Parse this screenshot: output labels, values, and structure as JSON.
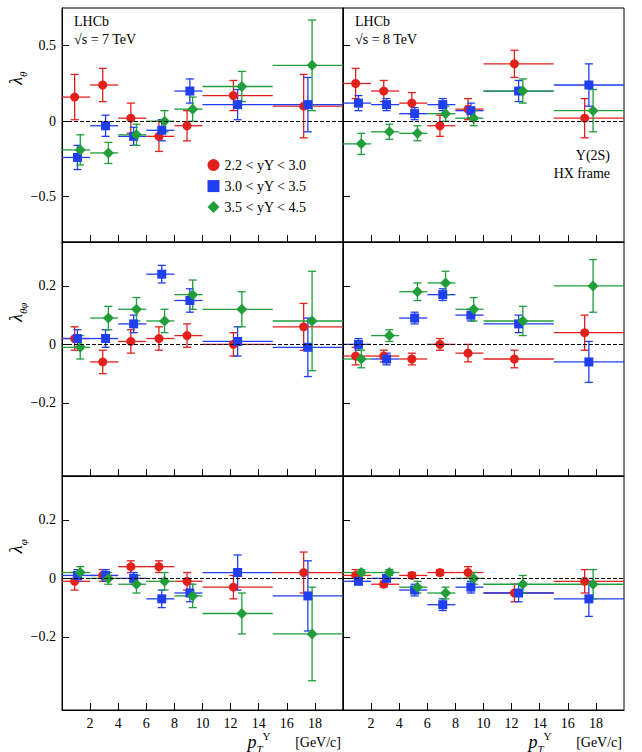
{
  "chart_data": [
    {
      "type": "scatter",
      "annotations": [
        "LHCb",
        "√s = 7 TeV"
      ],
      "ylabel": {
        "base": "λ",
        "sub": "θ"
      },
      "legend": "lower right",
      "xlim": [
        0,
        20
      ],
      "xticks": [
        2,
        4,
        6,
        8,
        10,
        12,
        14,
        16,
        18
      ],
      "ylim": [
        -0.8,
        0.75
      ],
      "yticks": [
        {
          "value": -0.5,
          "label": "−0.5"
        },
        0,
        0.5
      ],
      "tick_labels": "y",
      "hline": 0,
      "bin_edges": [
        0,
        2,
        4,
        6,
        8,
        10,
        15,
        20
      ],
      "series": [
        {
          "name": "2.2 < yΥ < 3.0",
          "color": "#e3211c",
          "marker": "circle",
          "x": [
            0.9,
            2.9,
            4.9,
            6.9,
            8.9,
            12.2,
            17.2
          ],
          "values": [
            0.16,
            0.24,
            0.02,
            -0.1,
            -0.03,
            0.17,
            0.1
          ],
          "errors": [
            0.15,
            0.11,
            0.1,
            0.1,
            0.1,
            0.1,
            0.21
          ]
        },
        {
          "name": "3.0 < yΥ < 3.5",
          "color": "#1f3ff0",
          "marker": "square",
          "x": [
            1.1,
            3.1,
            5.1,
            7.1,
            9.1,
            12.5,
            17.5
          ],
          "values": [
            -0.24,
            -0.03,
            -0.1,
            -0.06,
            0.2,
            0.11,
            0.11
          ],
          "errors": [
            0.08,
            0.07,
            0.06,
            0.07,
            0.08,
            0.1,
            0.18
          ]
        },
        {
          "name": "3.5 < yΥ < 4.5",
          "color": "#1f9e3a",
          "marker": "diamond",
          "x": [
            1.3,
            3.3,
            5.3,
            7.3,
            9.3,
            12.8,
            17.8
          ],
          "values": [
            -0.19,
            -0.21,
            -0.09,
            0.0,
            0.08,
            0.23,
            0.37
          ],
          "errors": [
            0.1,
            0.07,
            0.07,
            0.07,
            0.08,
            0.1,
            0.3
          ]
        }
      ]
    },
    {
      "type": "scatter",
      "annotations": [
        "LHCb",
        "√s = 8 TeV",
        "Υ(2S)",
        "HX frame"
      ],
      "xlim": [
        0,
        20
      ],
      "xticks": [
        2,
        4,
        6,
        8,
        10,
        12,
        14,
        16,
        18
      ],
      "ylim": [
        -0.8,
        0.75
      ],
      "yticks": [
        {
          "value": -0.5,
          "label": "−0.5"
        },
        0,
        0.5
      ],
      "tick_labels": false,
      "hline": 0,
      "bin_edges": [
        0,
        2,
        4,
        6,
        8,
        10,
        15,
        20
      ],
      "series": [
        {
          "name": "2.2 < yΥ < 3.0",
          "color": "#e3211c",
          "marker": "circle",
          "x": [
            0.9,
            2.9,
            4.9,
            6.9,
            8.9,
            12.2,
            17.2
          ],
          "values": [
            0.25,
            0.2,
            0.12,
            -0.03,
            0.08,
            0.38,
            0.02
          ],
          "errors": [
            0.1,
            0.07,
            0.07,
            0.07,
            0.07,
            0.09,
            0.13
          ]
        },
        {
          "name": "3.0 < yΥ < 3.5",
          "color": "#1f3ff0",
          "marker": "square",
          "x": [
            1.1,
            3.1,
            5.1,
            7.1,
            9.1,
            12.5,
            17.5
          ],
          "values": [
            0.12,
            0.11,
            0.05,
            0.11,
            0.07,
            0.2,
            0.24
          ],
          "errors": [
            0.05,
            0.04,
            0.04,
            0.04,
            0.05,
            0.07,
            0.14
          ]
        },
        {
          "name": "3.5 < yΥ < 4.5",
          "color": "#1f9e3a",
          "marker": "diamond",
          "x": [
            1.3,
            3.3,
            5.3,
            7.3,
            9.3,
            12.8,
            17.8
          ],
          "values": [
            -0.15,
            -0.07,
            -0.08,
            0.05,
            0.02,
            0.2,
            0.07
          ],
          "errors": [
            0.07,
            0.05,
            0.05,
            0.05,
            0.05,
            0.08,
            0.14
          ]
        }
      ]
    },
    {
      "type": "scatter",
      "ylabel": {
        "base": "λ",
        "sub": "θφ"
      },
      "xlim": [
        0,
        20
      ],
      "xticks": [
        2,
        4,
        6,
        8,
        10,
        12,
        14,
        16,
        18
      ],
      "ylim": [
        -0.45,
        0.35
      ],
      "yticks": [
        {
          "value": -0.2,
          "label": "−0.2"
        },
        0,
        0.2
      ],
      "tick_labels": "y",
      "hline": 0,
      "bin_edges": [
        0,
        2,
        4,
        6,
        8,
        10,
        15,
        20
      ],
      "series": [
        {
          "name": "2.2 < yΥ < 3.0",
          "color": "#e3211c",
          "marker": "circle",
          "x": [
            0.9,
            2.9,
            4.9,
            6.9,
            8.9,
            12.2,
            17.2
          ],
          "values": [
            0.02,
            -0.06,
            0.01,
            0.02,
            0.03,
            0.0,
            0.06
          ],
          "errors": [
            0.04,
            0.04,
            0.04,
            0.04,
            0.04,
            0.04,
            0.08
          ]
        },
        {
          "name": "3.0 < yΥ < 3.5",
          "color": "#1f3ff0",
          "marker": "square",
          "x": [
            1.1,
            3.1,
            5.1,
            7.1,
            9.1,
            12.5,
            17.5
          ],
          "values": [
            0.02,
            0.02,
            0.07,
            0.24,
            0.15,
            0.01,
            -0.01
          ],
          "errors": [
            0.03,
            0.03,
            0.03,
            0.03,
            0.04,
            0.05,
            0.1
          ]
        },
        {
          "name": "3.5 < yΥ < 4.5",
          "color": "#1f9e3a",
          "marker": "diamond",
          "x": [
            1.3,
            3.3,
            5.3,
            7.3,
            9.3,
            12.8,
            17.8
          ],
          "values": [
            -0.01,
            0.09,
            0.12,
            0.08,
            0.17,
            0.12,
            0.08
          ],
          "errors": [
            0.04,
            0.04,
            0.04,
            0.04,
            0.05,
            0.06,
            0.17
          ]
        }
      ]
    },
    {
      "type": "scatter",
      "xlim": [
        0,
        20
      ],
      "xticks": [
        2,
        4,
        6,
        8,
        10,
        12,
        14,
        16,
        18
      ],
      "ylim": [
        -0.45,
        0.35
      ],
      "yticks": [
        {
          "value": -0.2,
          "label": "−0.2"
        },
        0,
        0.2
      ],
      "tick_labels": false,
      "hline": 0,
      "bin_edges": [
        0,
        2,
        4,
        6,
        8,
        10,
        15,
        20
      ],
      "series": [
        {
          "name": "2.2 < yΥ < 3.0",
          "color": "#e3211c",
          "marker": "circle",
          "x": [
            0.9,
            2.9,
            4.9,
            6.9,
            8.9,
            12.2,
            17.2
          ],
          "values": [
            -0.04,
            -0.04,
            -0.05,
            0.0,
            -0.03,
            -0.05,
            0.04
          ],
          "errors": [
            0.03,
            0.02,
            0.02,
            0.02,
            0.03,
            0.03,
            0.06
          ]
        },
        {
          "name": "3.0 < yΥ < 3.5",
          "color": "#1f3ff0",
          "marker": "square",
          "x": [
            1.1,
            3.1,
            5.1,
            7.1,
            9.1,
            12.5,
            17.5
          ],
          "values": [
            0.0,
            -0.05,
            0.09,
            0.17,
            0.1,
            0.07,
            -0.06
          ],
          "errors": [
            0.02,
            0.02,
            0.02,
            0.02,
            0.02,
            0.03,
            0.07
          ]
        },
        {
          "name": "3.5 < yΥ < 4.5",
          "color": "#1f9e3a",
          "marker": "diamond",
          "x": [
            1.3,
            3.3,
            5.3,
            7.3,
            9.3,
            12.8,
            17.8
          ],
          "values": [
            -0.05,
            0.03,
            0.18,
            0.21,
            0.12,
            0.08,
            0.2
          ],
          "errors": [
            0.03,
            0.02,
            0.03,
            0.04,
            0.04,
            0.05,
            0.09
          ]
        }
      ]
    },
    {
      "type": "scatter",
      "ylabel": {
        "base": "λ",
        "sub": "φ"
      },
      "xlabel": {
        "base": "p",
        "sub": "T",
        "sup": "Υ"
      },
      "xunit": "[GeV/c]",
      "xlim": [
        0,
        20
      ],
      "xticks": [
        2,
        4,
        6,
        8,
        10,
        12,
        14,
        16,
        18
      ],
      "ylim": [
        -0.45,
        0.35
      ],
      "yticks": [
        {
          "value": -0.2,
          "label": "−0.2"
        },
        0,
        0.2
      ],
      "tick_labels": true,
      "hline": 0,
      "bin_edges": [
        0,
        2,
        4,
        6,
        8,
        10,
        15,
        20
      ],
      "series": [
        {
          "name": "2.2 < yΥ < 3.0",
          "color": "#e3211c",
          "marker": "circle",
          "x": [
            0.9,
            2.9,
            4.9,
            6.9,
            8.9,
            12.2,
            17.2
          ],
          "values": [
            -0.01,
            0.01,
            0.04,
            0.04,
            -0.01,
            -0.03,
            0.02
          ],
          "errors": [
            0.03,
            0.02,
            0.02,
            0.02,
            0.03,
            0.04,
            0.07
          ]
        },
        {
          "name": "3.0 < yΥ < 3.5",
          "color": "#1f3ff0",
          "marker": "square",
          "x": [
            1.1,
            3.1,
            5.1,
            7.1,
            9.1,
            12.5,
            17.5
          ],
          "values": [
            0.01,
            0.01,
            0.0,
            -0.07,
            -0.05,
            0.02,
            -0.06
          ],
          "errors": [
            0.02,
            0.02,
            0.02,
            0.03,
            0.03,
            0.06,
            0.12
          ]
        },
        {
          "name": "3.5 < yΥ < 4.5",
          "color": "#1f9e3a",
          "marker": "diamond",
          "x": [
            1.3,
            3.3,
            5.3,
            7.3,
            9.3,
            12.8,
            17.8
          ],
          "values": [
            0.02,
            0.0,
            -0.02,
            -0.01,
            -0.06,
            -0.12,
            -0.19
          ],
          "errors": [
            0.02,
            0.02,
            0.03,
            0.03,
            0.04,
            0.07,
            0.16
          ]
        }
      ]
    },
    {
      "type": "scatter",
      "xlabel": {
        "base": "p",
        "sub": "T",
        "sup": "Υ"
      },
      "xunit": "[GeV/c]",
      "xlim": [
        0,
        20
      ],
      "xticks": [
        2,
        4,
        6,
        8,
        10,
        12,
        14,
        16,
        18
      ],
      "ylim": [
        -0.45,
        0.35
      ],
      "yticks": [
        {
          "value": -0.2,
          "label": "−0.2"
        },
        0,
        0.2
      ],
      "tick_labels": "x",
      "hline": 0,
      "bin_edges": [
        0,
        2,
        4,
        6,
        8,
        10,
        15,
        20
      ],
      "series": [
        {
          "name": "2.2 < yΥ < 3.0",
          "color": "#e3211c",
          "marker": "circle",
          "x": [
            0.9,
            2.9,
            4.9,
            6.9,
            8.9,
            12.2,
            17.2
          ],
          "values": [
            0.01,
            -0.02,
            0.01,
            0.02,
            0.02,
            -0.05,
            -0.01
          ],
          "errors": [
            0.02,
            0.01,
            0.01,
            0.01,
            0.02,
            0.03,
            0.04
          ]
        },
        {
          "name": "3.0 < yΥ < 3.5",
          "color": "#1f3ff0",
          "marker": "square",
          "x": [
            1.1,
            3.1,
            5.1,
            7.1,
            9.1,
            12.5,
            17.5
          ],
          "values": [
            -0.01,
            0.0,
            -0.04,
            -0.09,
            -0.03,
            -0.05,
            -0.07
          ],
          "errors": [
            0.01,
            0.01,
            0.02,
            0.02,
            0.02,
            0.03,
            0.06
          ]
        },
        {
          "name": "3.5 < yΥ < 4.5",
          "color": "#1f9e3a",
          "marker": "diamond",
          "x": [
            1.3,
            3.3,
            5.3,
            7.3,
            9.3,
            12.8,
            17.8
          ],
          "values": [
            0.02,
            0.02,
            -0.03,
            -0.05,
            0.0,
            -0.02,
            -0.02
          ],
          "errors": [
            0.01,
            0.01,
            0.02,
            0.02,
            0.02,
            0.03,
            0.05
          ]
        }
      ]
    }
  ]
}
